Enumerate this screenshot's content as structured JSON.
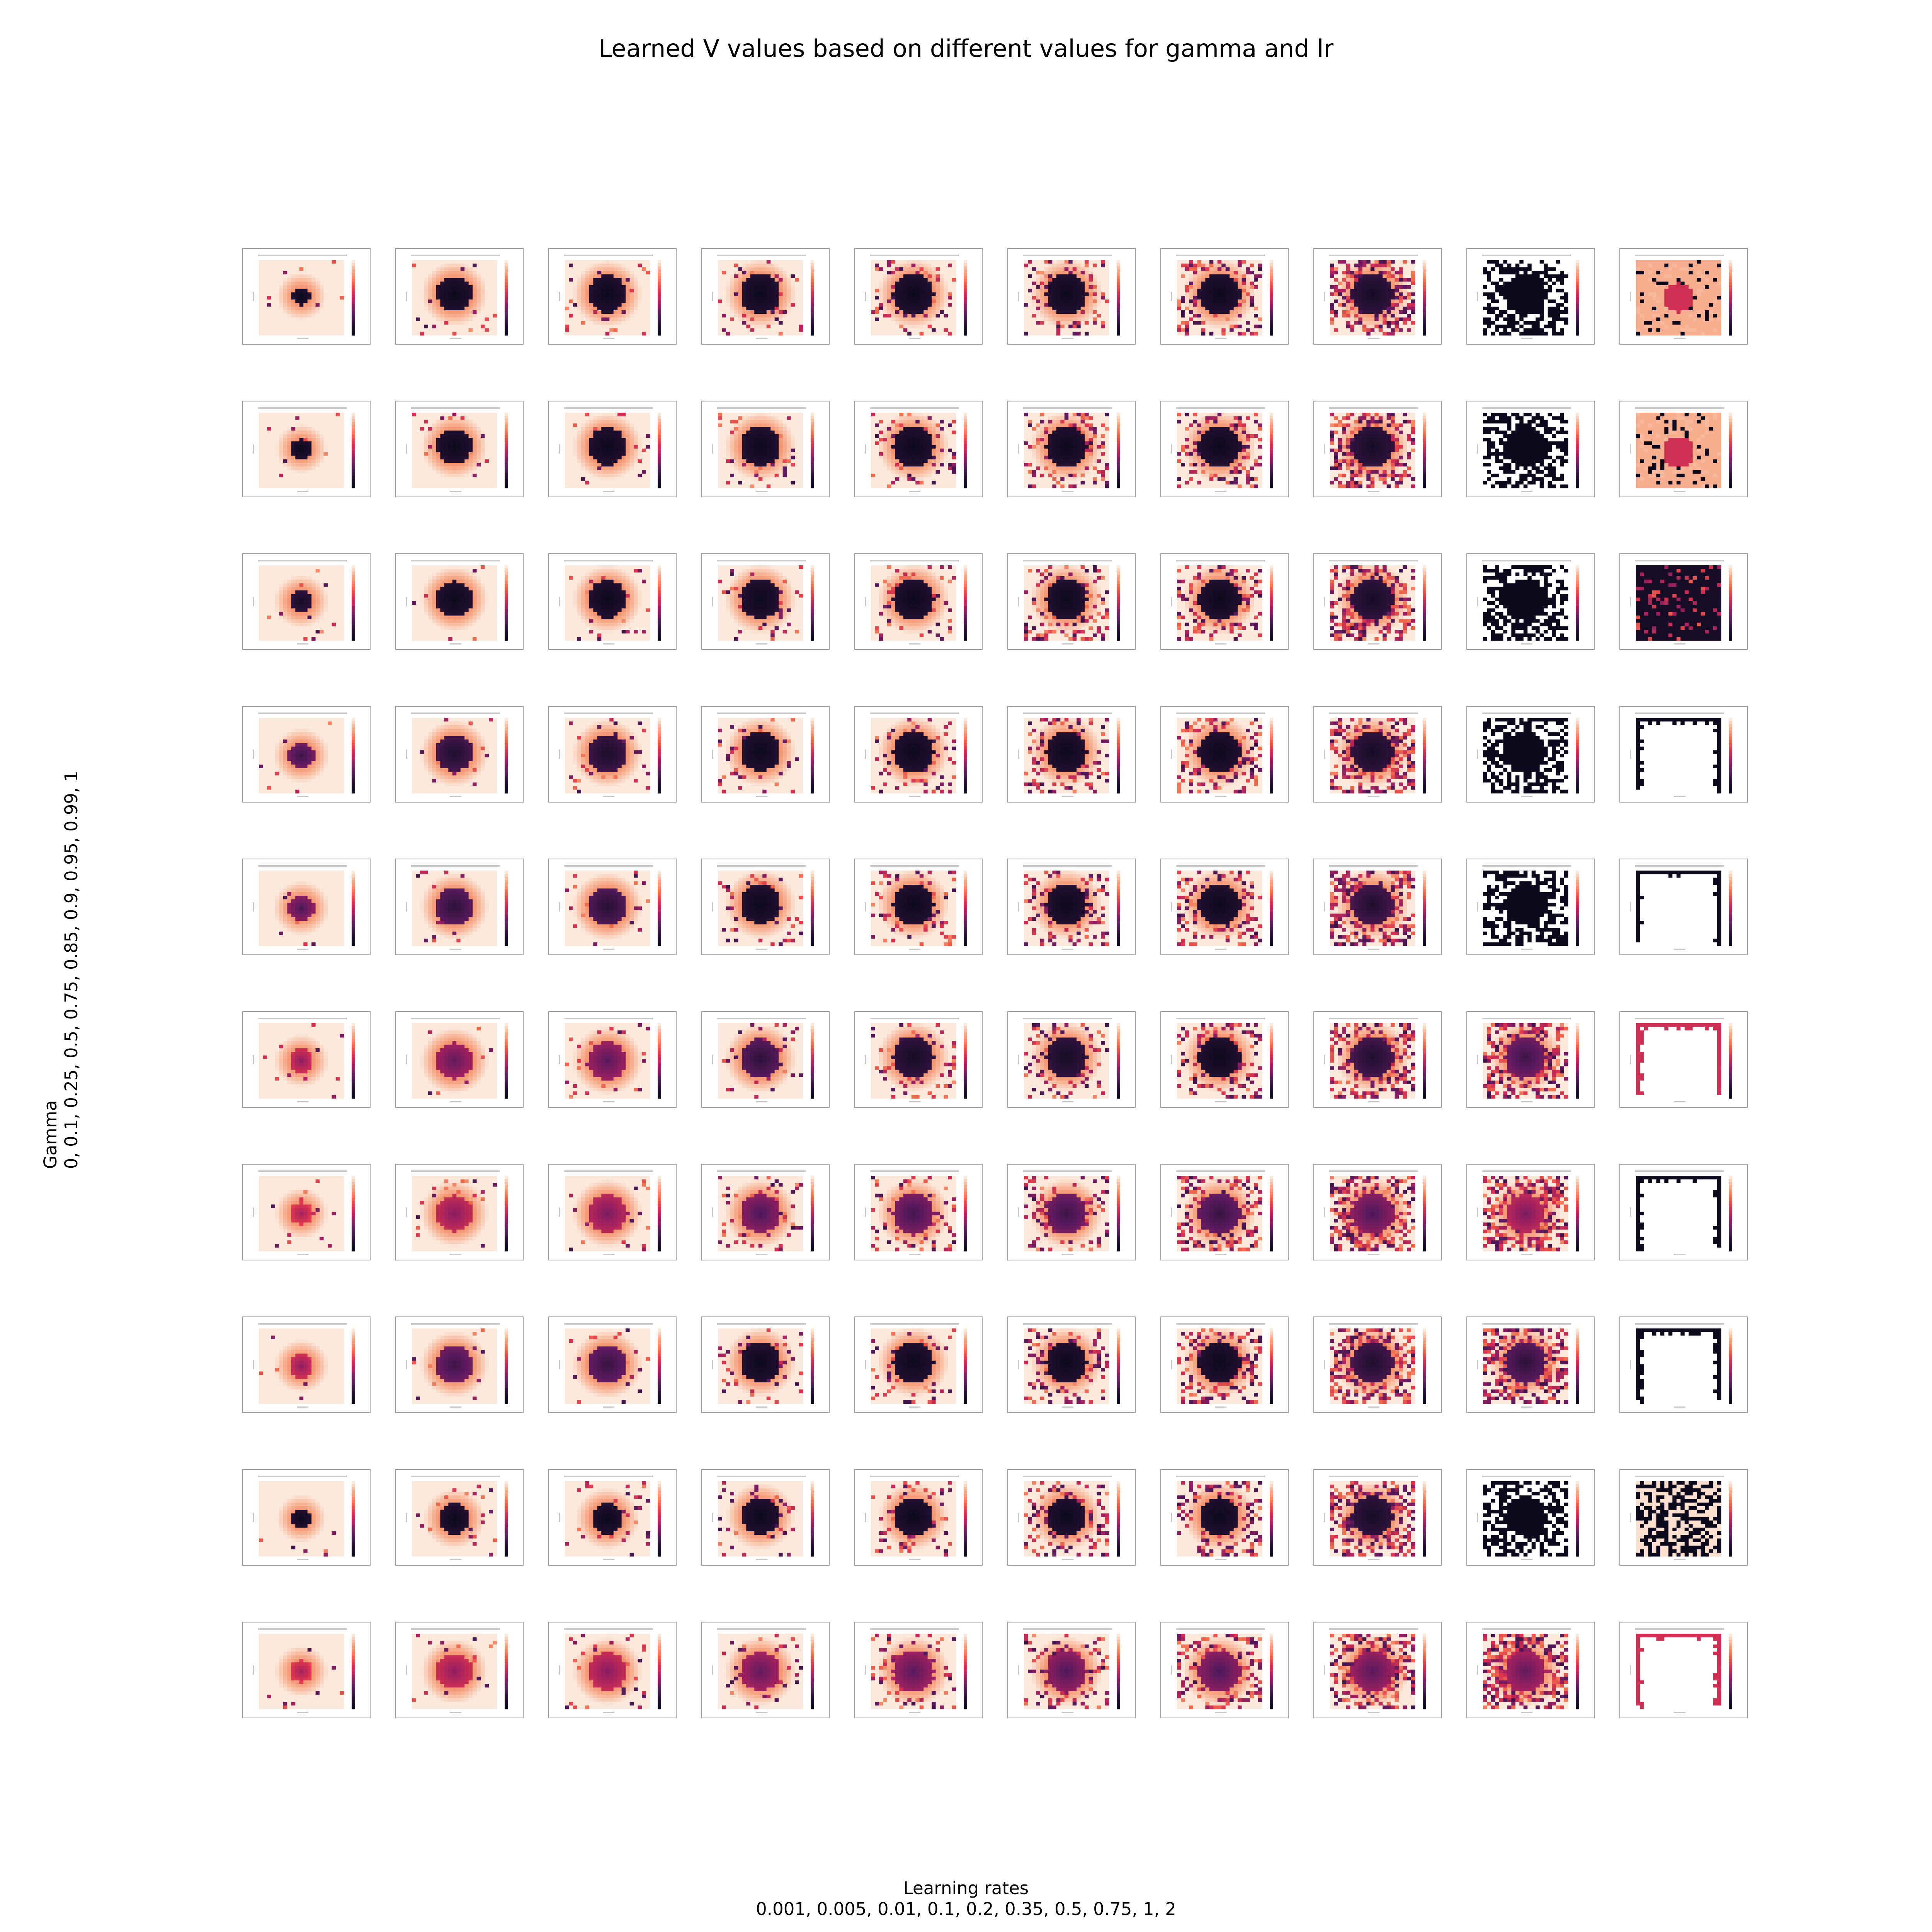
{
  "title": "Learned V values based on different values for gamma and lr",
  "x_axis": {
    "label": "Learning rates",
    "values_text": "0.001, 0.005, 0.01, 0.1, 0.2, 0.35, 0.5, 0.75, 1, 2"
  },
  "y_axis": {
    "label": "Gamma",
    "values_text": "0, 0.1, 0.25, 0.5, 0.75, 0.85, 0.9, 0.95, 0.99, 1"
  },
  "chart_data": {
    "type": "heatmap",
    "title": "Learned V values based on different values for gamma and lr",
    "xlabel": "Learning rates",
    "ylabel": "Gamma",
    "learning_rates": [
      0.001,
      0.005,
      0.01,
      0.1,
      0.2,
      0.35,
      0.5,
      0.75,
      1,
      2
    ],
    "gammas": [
      0,
      0.1,
      0.25,
      0.5,
      0.75,
      0.85,
      0.9,
      0.95,
      0.99,
      1
    ],
    "colormap": [
      "#fbe9dc",
      "#f6a380",
      "#ef6a4c",
      "#d8324f",
      "#9e2060",
      "#5a1a5e",
      "#2a1138",
      "#0c0a1c"
    ],
    "panels": [
      [
        {
          "style": "blob",
          "radius": 0.22,
          "darkness": 1.0,
          "noise": 0.02,
          "cx": 0.5,
          "cy": 0.48
        },
        {
          "style": "blob",
          "radius": 0.42,
          "darkness": 1.0,
          "noise": 0.04,
          "cx": 0.5,
          "cy": 0.45
        },
        {
          "style": "blob",
          "radius": 0.45,
          "darkness": 1.0,
          "noise": 0.05,
          "cx": 0.5,
          "cy": 0.45
        },
        {
          "style": "blob",
          "radius": 0.47,
          "darkness": 1.0,
          "noise": 0.1,
          "cx": 0.5,
          "cy": 0.45
        },
        {
          "style": "blob",
          "radius": 0.48,
          "darkness": 1.0,
          "noise": 0.15,
          "cx": 0.5,
          "cy": 0.45
        },
        {
          "style": "blob",
          "radius": 0.48,
          "darkness": 1.0,
          "noise": 0.2,
          "cx": 0.5,
          "cy": 0.45
        },
        {
          "style": "blob",
          "radius": 0.49,
          "darkness": 1.0,
          "noise": 0.3,
          "cx": 0.5,
          "cy": 0.45
        },
        {
          "style": "blob",
          "radius": 0.5,
          "darkness": 0.95,
          "noise": 0.45,
          "cx": 0.5,
          "cy": 0.45
        },
        {
          "style": "bw",
          "radius": 0.5,
          "darkness": 1.0,
          "noise": 0.55,
          "cx": 0.5,
          "cy": 0.45
        },
        {
          "style": "pinkblob",
          "radius": 0.35,
          "darkness": 0.6,
          "noise": 0.25,
          "cx": 0.5,
          "cy": 0.5
        }
      ],
      [
        {
          "style": "blob",
          "radius": 0.24,
          "darkness": 1.0,
          "noise": 0.02,
          "cx": 0.5,
          "cy": 0.48
        },
        {
          "style": "blob",
          "radius": 0.42,
          "darkness": 1.0,
          "noise": 0.04,
          "cx": 0.5,
          "cy": 0.45
        },
        {
          "style": "blob",
          "radius": 0.45,
          "darkness": 1.0,
          "noise": 0.05,
          "cx": 0.5,
          "cy": 0.45
        },
        {
          "style": "blob",
          "radius": 0.47,
          "darkness": 1.0,
          "noise": 0.1,
          "cx": 0.5,
          "cy": 0.45
        },
        {
          "style": "blob",
          "radius": 0.48,
          "darkness": 1.0,
          "noise": 0.15,
          "cx": 0.5,
          "cy": 0.45
        },
        {
          "style": "blob",
          "radius": 0.48,
          "darkness": 1.0,
          "noise": 0.22,
          "cx": 0.5,
          "cy": 0.45
        },
        {
          "style": "blob",
          "radius": 0.49,
          "darkness": 1.0,
          "noise": 0.3,
          "cx": 0.5,
          "cy": 0.45
        },
        {
          "style": "blob",
          "radius": 0.5,
          "darkness": 0.95,
          "noise": 0.45,
          "cx": 0.5,
          "cy": 0.45
        },
        {
          "style": "bw",
          "radius": 0.5,
          "darkness": 1.0,
          "noise": 0.55,
          "cx": 0.5,
          "cy": 0.45
        },
        {
          "style": "pinkblob",
          "radius": 0.38,
          "darkness": 0.6,
          "noise": 0.3,
          "cx": 0.5,
          "cy": 0.52
        }
      ],
      [
        {
          "style": "blob",
          "radius": 0.28,
          "darkness": 0.95,
          "noise": 0.02,
          "cx": 0.5,
          "cy": 0.48
        },
        {
          "style": "blob",
          "radius": 0.43,
          "darkness": 1.0,
          "noise": 0.04,
          "cx": 0.5,
          "cy": 0.45
        },
        {
          "style": "blob",
          "radius": 0.45,
          "darkness": 1.0,
          "noise": 0.05,
          "cx": 0.5,
          "cy": 0.45
        },
        {
          "style": "blob",
          "radius": 0.47,
          "darkness": 1.0,
          "noise": 0.1,
          "cx": 0.5,
          "cy": 0.45
        },
        {
          "style": "blob",
          "radius": 0.48,
          "darkness": 1.0,
          "noise": 0.15,
          "cx": 0.5,
          "cy": 0.45
        },
        {
          "style": "blob",
          "radius": 0.48,
          "darkness": 1.0,
          "noise": 0.22,
          "cx": 0.5,
          "cy": 0.45
        },
        {
          "style": "blob",
          "radius": 0.49,
          "darkness": 1.0,
          "noise": 0.3,
          "cx": 0.5,
          "cy": 0.45
        },
        {
          "style": "blob",
          "radius": 0.5,
          "darkness": 0.95,
          "noise": 0.45,
          "cx": 0.5,
          "cy": 0.45
        },
        {
          "style": "bw",
          "radius": 0.5,
          "darkness": 1.0,
          "noise": 0.55,
          "cx": 0.5,
          "cy": 0.45
        },
        {
          "style": "darkfield",
          "radius": 0.5,
          "darkness": 1.0,
          "noise": 0.15,
          "cx": 0.5,
          "cy": 0.5
        }
      ],
      [
        {
          "style": "blob",
          "radius": 0.3,
          "darkness": 0.8,
          "noise": 0.02,
          "cx": 0.5,
          "cy": 0.5
        },
        {
          "style": "blob",
          "radius": 0.44,
          "darkness": 0.9,
          "noise": 0.04,
          "cx": 0.5,
          "cy": 0.47
        },
        {
          "style": "blob",
          "radius": 0.46,
          "darkness": 0.92,
          "noise": 0.05,
          "cx": 0.5,
          "cy": 0.47
        },
        {
          "style": "blob",
          "radius": 0.47,
          "darkness": 1.0,
          "noise": 0.1,
          "cx": 0.5,
          "cy": 0.45
        },
        {
          "style": "blob",
          "radius": 0.48,
          "darkness": 1.0,
          "noise": 0.15,
          "cx": 0.5,
          "cy": 0.45
        },
        {
          "style": "blob",
          "radius": 0.48,
          "darkness": 1.0,
          "noise": 0.22,
          "cx": 0.5,
          "cy": 0.45
        },
        {
          "style": "blob",
          "radius": 0.49,
          "darkness": 1.0,
          "noise": 0.3,
          "cx": 0.5,
          "cy": 0.45
        },
        {
          "style": "blob",
          "radius": 0.5,
          "darkness": 0.95,
          "noise": 0.45,
          "cx": 0.5,
          "cy": 0.45
        },
        {
          "style": "bw",
          "radius": 0.5,
          "darkness": 1.0,
          "noise": 0.55,
          "cx": 0.5,
          "cy": 0.45
        },
        {
          "style": "frame",
          "radius": 0.5,
          "darkness": 1.0,
          "noise": 0.3,
          "cx": 0.5,
          "cy": 0.5
        }
      ],
      [
        {
          "style": "blob",
          "radius": 0.3,
          "darkness": 0.75,
          "noise": 0.02,
          "cx": 0.5,
          "cy": 0.5
        },
        {
          "style": "blob",
          "radius": 0.44,
          "darkness": 0.85,
          "noise": 0.04,
          "cx": 0.5,
          "cy": 0.48
        },
        {
          "style": "blob",
          "radius": 0.46,
          "darkness": 0.87,
          "noise": 0.05,
          "cx": 0.5,
          "cy": 0.48
        },
        {
          "style": "blob",
          "radius": 0.47,
          "darkness": 1.0,
          "noise": 0.1,
          "cx": 0.5,
          "cy": 0.45
        },
        {
          "style": "blob",
          "radius": 0.48,
          "darkness": 1.0,
          "noise": 0.15,
          "cx": 0.5,
          "cy": 0.45
        },
        {
          "style": "blob",
          "radius": 0.48,
          "darkness": 1.0,
          "noise": 0.22,
          "cx": 0.5,
          "cy": 0.45
        },
        {
          "style": "blob",
          "radius": 0.49,
          "darkness": 1.0,
          "noise": 0.3,
          "cx": 0.5,
          "cy": 0.45
        },
        {
          "style": "blob",
          "radius": 0.5,
          "darkness": 0.9,
          "noise": 0.45,
          "cx": 0.5,
          "cy": 0.45
        },
        {
          "style": "bw",
          "radius": 0.5,
          "darkness": 1.0,
          "noise": 0.55,
          "cx": 0.5,
          "cy": 0.45
        },
        {
          "style": "frame",
          "radius": 0.5,
          "darkness": 1.0,
          "noise": 0.3,
          "cx": 0.5,
          "cy": 0.5
        }
      ],
      [
        {
          "style": "blob",
          "radius": 0.28,
          "darkness": 0.6,
          "noise": 0.02,
          "cx": 0.5,
          "cy": 0.5
        },
        {
          "style": "blob",
          "radius": 0.44,
          "darkness": 0.7,
          "noise": 0.04,
          "cx": 0.5,
          "cy": 0.5
        },
        {
          "style": "blob",
          "radius": 0.46,
          "darkness": 0.72,
          "noise": 0.05,
          "cx": 0.5,
          "cy": 0.5
        },
        {
          "style": "blob",
          "radius": 0.47,
          "darkness": 0.85,
          "noise": 0.1,
          "cx": 0.5,
          "cy": 0.47
        },
        {
          "style": "blob",
          "radius": 0.48,
          "darkness": 0.95,
          "noise": 0.15,
          "cx": 0.5,
          "cy": 0.45
        },
        {
          "style": "blob",
          "radius": 0.48,
          "darkness": 0.95,
          "noise": 0.22,
          "cx": 0.5,
          "cy": 0.45
        },
        {
          "style": "blob",
          "radius": 0.49,
          "darkness": 1.0,
          "noise": 0.3,
          "cx": 0.5,
          "cy": 0.45
        },
        {
          "style": "blob",
          "radius": 0.5,
          "darkness": 0.9,
          "noise": 0.45,
          "cx": 0.5,
          "cy": 0.45
        },
        {
          "style": "blob",
          "radius": 0.48,
          "darkness": 0.8,
          "noise": 0.5,
          "cx": 0.5,
          "cy": 0.45
        },
        {
          "style": "pinkframe",
          "radius": 0.5,
          "darkness": 1.0,
          "noise": 0.3,
          "cx": 0.5,
          "cy": 0.5
        }
      ],
      [
        {
          "style": "blob",
          "radius": 0.26,
          "darkness": 0.55,
          "noise": 0.02,
          "cx": 0.5,
          "cy": 0.5
        },
        {
          "style": "blob",
          "radius": 0.44,
          "darkness": 0.62,
          "noise": 0.04,
          "cx": 0.5,
          "cy": 0.5
        },
        {
          "style": "blob",
          "radius": 0.46,
          "darkness": 0.65,
          "noise": 0.05,
          "cx": 0.5,
          "cy": 0.5
        },
        {
          "style": "blob",
          "radius": 0.47,
          "darkness": 0.75,
          "noise": 0.1,
          "cx": 0.5,
          "cy": 0.5
        },
        {
          "style": "blob",
          "radius": 0.48,
          "darkness": 0.78,
          "noise": 0.15,
          "cx": 0.5,
          "cy": 0.5
        },
        {
          "style": "blob",
          "radius": 0.48,
          "darkness": 0.8,
          "noise": 0.22,
          "cx": 0.5,
          "cy": 0.5
        },
        {
          "style": "blob",
          "radius": 0.49,
          "darkness": 0.82,
          "noise": 0.3,
          "cx": 0.5,
          "cy": 0.5
        },
        {
          "style": "blob",
          "radius": 0.5,
          "darkness": 0.75,
          "noise": 0.45,
          "cx": 0.5,
          "cy": 0.5
        },
        {
          "style": "blob",
          "radius": 0.45,
          "darkness": 0.65,
          "noise": 0.5,
          "cx": 0.5,
          "cy": 0.5
        },
        {
          "style": "frame",
          "radius": 0.5,
          "darkness": 1.0,
          "noise": 0.3,
          "cx": 0.5,
          "cy": 0.5
        }
      ],
      [
        {
          "style": "blob",
          "radius": 0.28,
          "darkness": 0.6,
          "noise": 0.02,
          "cx": 0.5,
          "cy": 0.5
        },
        {
          "style": "blob",
          "radius": 0.44,
          "darkness": 0.8,
          "noise": 0.04,
          "cx": 0.5,
          "cy": 0.48
        },
        {
          "style": "blob",
          "radius": 0.46,
          "darkness": 0.82,
          "noise": 0.05,
          "cx": 0.5,
          "cy": 0.48
        },
        {
          "style": "blob",
          "radius": 0.47,
          "darkness": 1.0,
          "noise": 0.1,
          "cx": 0.5,
          "cy": 0.45
        },
        {
          "style": "blob",
          "radius": 0.48,
          "darkness": 1.0,
          "noise": 0.15,
          "cx": 0.5,
          "cy": 0.45
        },
        {
          "style": "blob",
          "radius": 0.48,
          "darkness": 1.0,
          "noise": 0.22,
          "cx": 0.5,
          "cy": 0.45
        },
        {
          "style": "blob",
          "radius": 0.49,
          "darkness": 1.0,
          "noise": 0.3,
          "cx": 0.5,
          "cy": 0.45
        },
        {
          "style": "blob",
          "radius": 0.5,
          "darkness": 0.9,
          "noise": 0.45,
          "cx": 0.5,
          "cy": 0.45
        },
        {
          "style": "blob",
          "radius": 0.48,
          "darkness": 0.85,
          "noise": 0.5,
          "cx": 0.5,
          "cy": 0.45
        },
        {
          "style": "frame",
          "radius": 0.5,
          "darkness": 1.0,
          "noise": 0.3,
          "cx": 0.5,
          "cy": 0.5
        }
      ],
      [
        {
          "style": "blob",
          "radius": 0.22,
          "darkness": 1.0,
          "noise": 0.02,
          "cx": 0.5,
          "cy": 0.5
        },
        {
          "style": "blob",
          "radius": 0.36,
          "darkness": 1.0,
          "noise": 0.04,
          "cx": 0.5,
          "cy": 0.5
        },
        {
          "style": "blob",
          "radius": 0.38,
          "darkness": 1.0,
          "noise": 0.05,
          "cx": 0.5,
          "cy": 0.5
        },
        {
          "style": "blob",
          "radius": 0.44,
          "darkness": 1.0,
          "noise": 0.1,
          "cx": 0.5,
          "cy": 0.47
        },
        {
          "style": "blob",
          "radius": 0.45,
          "darkness": 1.0,
          "noise": 0.15,
          "cx": 0.5,
          "cy": 0.47
        },
        {
          "style": "blob",
          "radius": 0.46,
          "darkness": 1.0,
          "noise": 0.22,
          "cx": 0.5,
          "cy": 0.47
        },
        {
          "style": "blob",
          "radius": 0.47,
          "darkness": 1.0,
          "noise": 0.3,
          "cx": 0.5,
          "cy": 0.47
        },
        {
          "style": "blob",
          "radius": 0.48,
          "darkness": 0.95,
          "noise": 0.45,
          "cx": 0.5,
          "cy": 0.47
        },
        {
          "style": "bw",
          "radius": 0.48,
          "darkness": 1.0,
          "noise": 0.55,
          "cx": 0.5,
          "cy": 0.47
        },
        {
          "style": "bwscatter",
          "radius": 0.5,
          "darkness": 1.0,
          "noise": 0.5,
          "cx": 0.5,
          "cy": 0.5
        }
      ],
      [
        {
          "style": "blob",
          "radius": 0.26,
          "darkness": 0.55,
          "noise": 0.02,
          "cx": 0.5,
          "cy": 0.5
        },
        {
          "style": "blob",
          "radius": 0.42,
          "darkness": 0.6,
          "noise": 0.04,
          "cx": 0.5,
          "cy": 0.5
        },
        {
          "style": "blob",
          "radius": 0.45,
          "darkness": 0.62,
          "noise": 0.05,
          "cx": 0.5,
          "cy": 0.5
        },
        {
          "style": "blob",
          "radius": 0.47,
          "darkness": 0.7,
          "noise": 0.1,
          "cx": 0.5,
          "cy": 0.5
        },
        {
          "style": "blob",
          "radius": 0.48,
          "darkness": 0.72,
          "noise": 0.15,
          "cx": 0.5,
          "cy": 0.5
        },
        {
          "style": "blob",
          "radius": 0.48,
          "darkness": 0.74,
          "noise": 0.22,
          "cx": 0.5,
          "cy": 0.5
        },
        {
          "style": "blob",
          "radius": 0.49,
          "darkness": 0.75,
          "noise": 0.3,
          "cx": 0.5,
          "cy": 0.5
        },
        {
          "style": "blob",
          "radius": 0.5,
          "darkness": 0.72,
          "noise": 0.45,
          "cx": 0.5,
          "cy": 0.5
        },
        {
          "style": "blob",
          "radius": 0.48,
          "darkness": 0.7,
          "noise": 0.55,
          "cx": 0.5,
          "cy": 0.5
        },
        {
          "style": "pinkframe",
          "radius": 0.5,
          "darkness": 1.0,
          "noise": 0.3,
          "cx": 0.5,
          "cy": 0.5
        }
      ]
    ]
  }
}
